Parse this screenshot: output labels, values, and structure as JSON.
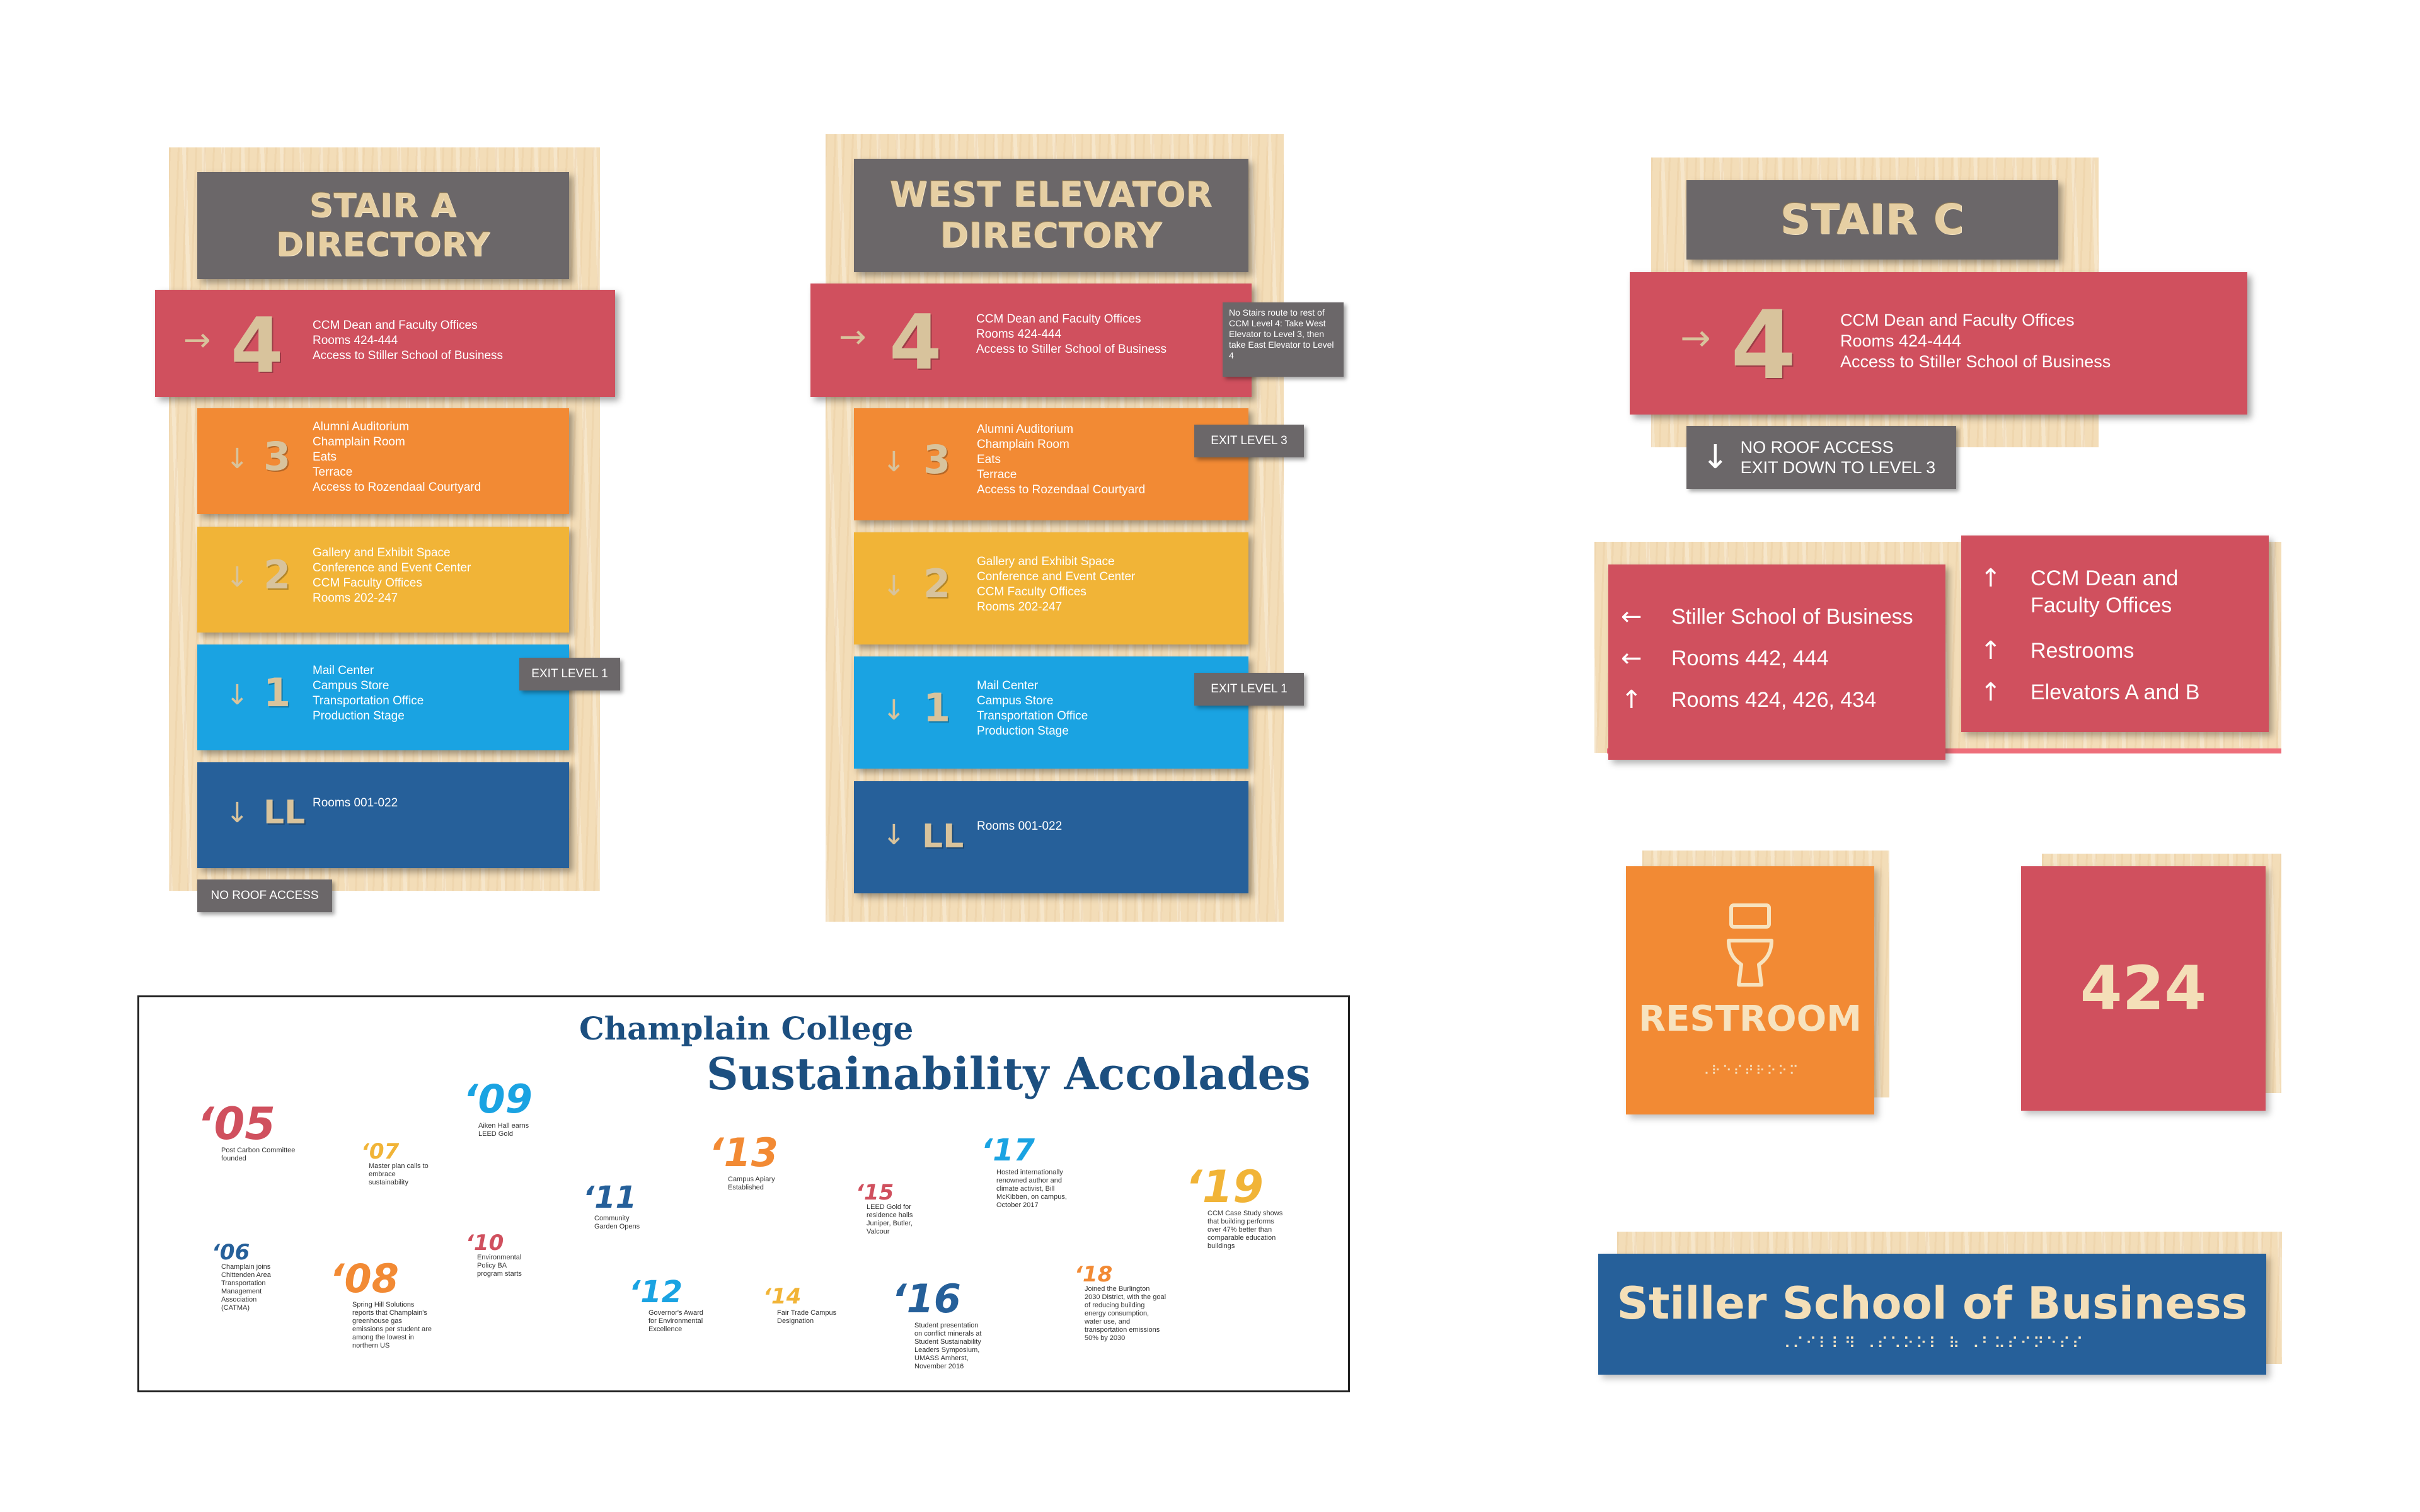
{
  "stair_a": {
    "title": "STAIR A\nDIRECTORY",
    "floors": [
      {
        "num": "4",
        "lines": [
          "CCM Dean and Faculty Offices",
          "Rooms 424-444",
          "Access to Stiller School of Business"
        ]
      },
      {
        "num": "3",
        "lines": [
          "Alumni Auditorium",
          "Champlain Room",
          "Eats",
          "Terrace",
          "Access to Rozendaal Courtyard"
        ]
      },
      {
        "num": "2",
        "lines": [
          "Gallery and Exhibit Space",
          "Conference and Event Center",
          "CCM Faculty Offices",
          "Rooms 202-247"
        ]
      },
      {
        "num": "1",
        "lines": [
          "Mail Center",
          "Campus Store",
          "Transportation Office",
          "Production Stage"
        ]
      },
      {
        "num": "LL",
        "lines": [
          "Rooms 001-022"
        ]
      }
    ],
    "exit_tag": "EXIT LEVEL 1",
    "roof_tag": "NO ROOF ACCESS"
  },
  "west_elevator": {
    "title": "WEST ELEVATOR\nDIRECTORY",
    "floors": [
      {
        "num": "4",
        "lines": [
          "CCM Dean and Faculty Offices",
          "Rooms 424-444",
          "Access to Stiller School of Business"
        ]
      },
      {
        "num": "3",
        "lines": [
          "Alumni Auditorium",
          "Champlain Room",
          "Eats",
          "Terrace",
          "Access to Rozendaal Courtyard"
        ]
      },
      {
        "num": "2",
        "lines": [
          "Gallery and Exhibit Space",
          "Conference and Event Center",
          "CCM Faculty Offices",
          "Rooms 202-247"
        ]
      },
      {
        "num": "1",
        "lines": [
          "Mail Center",
          "Campus Store",
          "Transportation Office",
          "Production Stage"
        ]
      },
      {
        "num": "LL",
        "lines": [
          "Rooms 001-022"
        ]
      }
    ],
    "note": "No Stairs route to rest of CCM Level 4: Take West Elevator to Level 3, then take East Elevator to Level 4",
    "exit3_tag": "EXIT LEVEL 3",
    "exit1_tag": "EXIT LEVEL 1"
  },
  "stair_c": {
    "title": "STAIR C",
    "floor": {
      "num": "4",
      "lines": [
        "CCM Dean and Faculty Offices",
        "Rooms 424-444",
        "Access to Stiller School of Business"
      ]
    },
    "roof_line1": "NO ROOF ACCESS",
    "roof_line2": "EXIT DOWN TO LEVEL 3"
  },
  "wayfinding": {
    "left": [
      {
        "arrow": "←",
        "label": "Stiller School of Business"
      },
      {
        "arrow": "←",
        "label": "Rooms 442, 444"
      },
      {
        "arrow": "↑",
        "label": "Rooms 424, 426, 434"
      }
    ],
    "right": [
      {
        "arrow": "↑",
        "label": "CCM Dean and"
      },
      {
        "arrow": "",
        "label": "Faculty Offices"
      },
      {
        "arrow": "↑",
        "label": "Restrooms"
      },
      {
        "arrow": "↑",
        "label": "Elevators A and B"
      }
    ]
  },
  "restroom": {
    "label": "RESTROOM",
    "icon": "toilet-icon",
    "braille": "⠠⠗⠑⠎⠞⠗⠕⠕⠍"
  },
  "room": {
    "number": "424"
  },
  "stiller": {
    "label": "Stiller School of Business",
    "braille": "⠠⠌⠊⠇⠇⠻ ⠠⠎⠡⠕⠕⠇ ⠷ ⠠⠃⠥⠎⠊⠝⠑⠎⠎"
  },
  "timeline": {
    "college": "Champlain College",
    "title": "Sustainability Accolades",
    "entries": [
      {
        "year": "‘05",
        "note": "Post Carbon Committee founded"
      },
      {
        "year": "‘06",
        "note": "Champlain joins Chittenden Area Transportation Management Association (CATMA)"
      },
      {
        "year": "‘07",
        "note": "Master plan calls to embrace sustainability"
      },
      {
        "year": "‘08",
        "note": "Spring Hill Solutions reports that Champlain's greenhouse gas emissions per student are among the lowest in northern US"
      },
      {
        "year": "‘09",
        "note": "Aiken Hall earns LEED Gold"
      },
      {
        "year": "‘10",
        "note": "Environmental Policy BA program starts"
      },
      {
        "year": "‘11",
        "note": "Community Garden Opens"
      },
      {
        "year": "‘12",
        "note": "Governor's Award for Environmental Excellence"
      },
      {
        "year": "‘13",
        "note": "Campus Apiary Established"
      },
      {
        "year": "‘14",
        "note": "Fair Trade Campus Designation"
      },
      {
        "year": "‘15",
        "note": "LEED Gold for residence halls Juniper, Butler, Valcour"
      },
      {
        "year": "‘16",
        "note": "Student presentation on conflict minerals at Student Sustainability Leaders Symposium, UMASS Amherst, November 2016"
      },
      {
        "year": "‘17",
        "note": "Hosted internationally renowned author and climate activist, Bill McKibben, on campus, October 2017"
      },
      {
        "year": "‘18",
        "note": "Joined the Burlington 2030 District, with the goal of reducing building energy consumption, water use, and transportation emissions 50% by 2030"
      },
      {
        "year": "‘19",
        "note": "CCM Case Study shows that building performs over 47% better than comparable education buildings"
      }
    ]
  },
  "colors": {
    "red": "#d0505e",
    "orange": "#f28a34",
    "yellow": "#f1b437",
    "cyan": "#1aa3e2",
    "navy": "#26609a",
    "gray": "#6b6769",
    "wood": "#f3ddb8"
  }
}
